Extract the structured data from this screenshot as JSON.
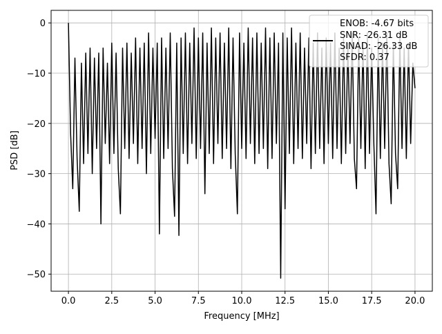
{
  "chart_data": {
    "type": "line",
    "title": "",
    "xlabel": "Frequency [MHz]",
    "ylabel": "PSD [dB]",
    "xlim": [
      -1.0,
      21.0
    ],
    "ylim": [
      -53.4,
      2.5
    ],
    "grid": true,
    "xticks": [
      0.0,
      2.5,
      5.0,
      7.5,
      10.0,
      12.5,
      15.0,
      17.5,
      20.0
    ],
    "xtick_labels": [
      "0.0",
      "2.5",
      "5.0",
      "7.5",
      "10.0",
      "12.5",
      "15.0",
      "17.5",
      "20.0"
    ],
    "yticks": [
      0,
      -10,
      -20,
      -30,
      -40,
      -50
    ],
    "ytick_labels": [
      "0",
      "−10",
      "−20",
      "−30",
      "−40",
      "−50"
    ],
    "legend": {
      "placement": "top-right",
      "entries": [
        "ENOB: -4.67 bits",
        "SNR: -26.31 dB",
        "SINAD: -26.33 dB",
        "SFDR: 0.37"
      ]
    },
    "series": [
      {
        "name": "PSD",
        "color": "#000000",
        "x_start": 0,
        "x_step": 0.125,
        "values": [
          0,
          -22,
          -33,
          -7,
          -27,
          -37.5,
          -8,
          -28,
          -6,
          -26,
          -5,
          -30,
          -7,
          -25,
          -6,
          -40,
          -5,
          -24,
          -8,
          -28,
          -4,
          -26,
          -6,
          -29,
          -38,
          -5,
          -25,
          -4,
          -27,
          -6,
          -24,
          -3,
          -28,
          -5,
          -25,
          -4,
          -30,
          -2,
          -26,
          -5,
          -23,
          -4,
          -42,
          -3,
          -27,
          -5,
          -25,
          -2,
          -29,
          -38.5,
          -4,
          -42.3,
          -3,
          -26,
          -2,
          -28,
          -4,
          -24,
          -1,
          -27,
          -3,
          -25,
          -2,
          -34,
          -4,
          -26,
          -1,
          -28,
          -3,
          -24,
          -2,
          -27,
          -4,
          -25,
          -1,
          -29,
          -3,
          -26,
          -38,
          -2,
          -25,
          -4,
          -27,
          -1,
          -24,
          -3,
          -28,
          -2,
          -26,
          -4,
          -25,
          -1,
          -29,
          -3,
          -27,
          -2,
          -24,
          -4,
          -50.8,
          -2,
          -37,
          -3,
          -26,
          -1,
          -28,
          -4,
          -25,
          -2,
          -27,
          -5,
          -24,
          -3,
          -29,
          -4,
          -26,
          -2,
          -25,
          -5,
          -28,
          -3,
          -24,
          -4,
          -27,
          -2,
          -25,
          -5,
          -28,
          -3,
          -26,
          -4,
          -24,
          -2,
          -27,
          -33,
          -3,
          -25,
          -4,
          -29,
          -2,
          -26,
          -5,
          -24,
          -38,
          -3,
          -27,
          -4,
          -25,
          -2,
          -28,
          -36,
          -4,
          -26,
          -33,
          -3,
          -25,
          -5,
          -27,
          -4,
          -24,
          -8,
          -13
        ]
      }
    ]
  }
}
